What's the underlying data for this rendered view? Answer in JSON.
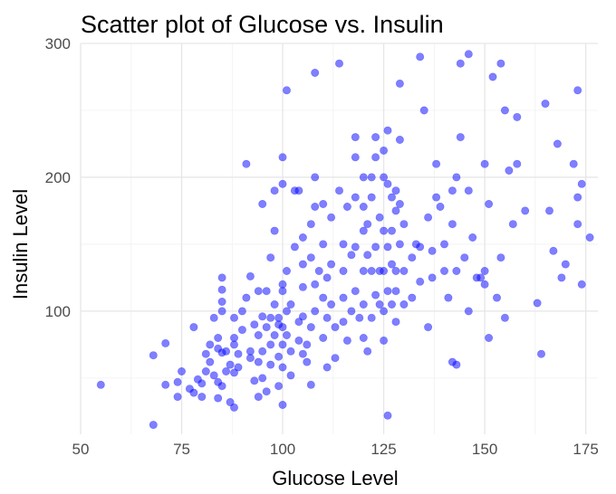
{
  "chart_data": {
    "type": "scatter",
    "title": "Scatter plot of Glucose vs. Insulin",
    "xlabel": "Glucose Level",
    "ylabel": "Insulin Level",
    "xlim": [
      50,
      178
    ],
    "ylim": [
      8,
      300
    ],
    "x_ticks": [
      50,
      75,
      100,
      125,
      150,
      175
    ],
    "y_ticks": [
      100,
      200,
      300
    ],
    "grid": true,
    "point_color": "#0000FF",
    "point_opacity": 0.5,
    "series": [
      {
        "points": [
          [
            55,
            45
          ],
          [
            68,
            15
          ],
          [
            68,
            67
          ],
          [
            71,
            45
          ],
          [
            71,
            76
          ],
          [
            74,
            36
          ],
          [
            74,
            47
          ],
          [
            75,
            55
          ],
          [
            77,
            42
          ],
          [
            78,
            88
          ],
          [
            78,
            39
          ],
          [
            79,
            49
          ],
          [
            80,
            36
          ],
          [
            80,
            46
          ],
          [
            81,
            68
          ],
          [
            81,
            55
          ],
          [
            82,
            75
          ],
          [
            82,
            62
          ],
          [
            83,
            95
          ],
          [
            83,
            52
          ],
          [
            84,
            35
          ],
          [
            84,
            47
          ],
          [
            84,
            72
          ],
          [
            84,
            80
          ],
          [
            85,
            100
          ],
          [
            85,
            107
          ],
          [
            85,
            116
          ],
          [
            85,
            125
          ],
          [
            85,
            69
          ],
          [
            85,
            44
          ],
          [
            86,
            55
          ],
          [
            86,
            70
          ],
          [
            87,
            60
          ],
          [
            87,
            32
          ],
          [
            88,
            75
          ],
          [
            88,
            54
          ],
          [
            88,
            28
          ],
          [
            88,
            80
          ],
          [
            88,
            95
          ],
          [
            89,
            58
          ],
          [
            89,
            68
          ],
          [
            90,
            100
          ],
          [
            90,
            86
          ],
          [
            91,
            210
          ],
          [
            91,
            110
          ],
          [
            92,
            70
          ],
          [
            92,
            65
          ],
          [
            92,
            126
          ],
          [
            93,
            90
          ],
          [
            93,
            48
          ],
          [
            94,
            82
          ],
          [
            94,
            62
          ],
          [
            94,
            36
          ],
          [
            94,
            115
          ],
          [
            95,
            180
          ],
          [
            95,
            96
          ],
          [
            95,
            70
          ],
          [
            95,
            50
          ],
          [
            96,
            115
          ],
          [
            96,
            88
          ],
          [
            96,
            40
          ],
          [
            97,
            140
          ],
          [
            97,
            95
          ],
          [
            97,
            75
          ],
          [
            97,
            60
          ],
          [
            98,
            190
          ],
          [
            98,
            160
          ],
          [
            98,
            105
          ],
          [
            98,
            82
          ],
          [
            99,
            66
          ],
          [
            99,
            90
          ],
          [
            99,
            95
          ],
          [
            99,
            44
          ],
          [
            100,
            215
          ],
          [
            100,
            195
          ],
          [
            100,
            120
          ],
          [
            100,
            115
          ],
          [
            100,
            88
          ],
          [
            100,
            75
          ],
          [
            100,
            58
          ],
          [
            100,
            30
          ],
          [
            101,
            265
          ],
          [
            101,
            130
          ],
          [
            101,
            100
          ],
          [
            101,
            82
          ],
          [
            102,
            70
          ],
          [
            102,
            52
          ],
          [
            102,
            105
          ],
          [
            103,
            190
          ],
          [
            103,
            148
          ],
          [
            104,
            92
          ],
          [
            104,
            78
          ],
          [
            104,
            190
          ],
          [
            105,
            155
          ],
          [
            105,
            135
          ],
          [
            105,
            118
          ],
          [
            105,
            96
          ],
          [
            105,
            68
          ],
          [
            106,
            75
          ],
          [
            106,
            62
          ],
          [
            107,
            165
          ],
          [
            107,
            140
          ],
          [
            107,
            88
          ],
          [
            107,
            45
          ],
          [
            108,
            278
          ],
          [
            108,
            200
          ],
          [
            108,
            178
          ],
          [
            108,
            120
          ],
          [
            108,
            100
          ],
          [
            109,
            130
          ],
          [
            110,
            180
          ],
          [
            110,
            150
          ],
          [
            110,
            110
          ],
          [
            110,
            80
          ],
          [
            111,
            125
          ],
          [
            111,
            95
          ],
          [
            111,
            58
          ],
          [
            112,
            170
          ],
          [
            112,
            135
          ],
          [
            112,
            105
          ],
          [
            113,
            88
          ],
          [
            113,
            65
          ],
          [
            114,
            285
          ],
          [
            114,
            190
          ],
          [
            115,
            150
          ],
          [
            115,
            130
          ],
          [
            115,
            110
          ],
          [
            115,
            92
          ],
          [
            116,
            178
          ],
          [
            116,
            78
          ],
          [
            117,
            142
          ],
          [
            117,
            100
          ],
          [
            118,
            230
          ],
          [
            118,
            215
          ],
          [
            118,
            185
          ],
          [
            118,
            148
          ],
          [
            118,
            115
          ],
          [
            119,
            95
          ],
          [
            120,
            200
          ],
          [
            120,
            178
          ],
          [
            120,
            160
          ],
          [
            120,
            130
          ],
          [
            120,
            105
          ],
          [
            120,
            80
          ],
          [
            121,
            165
          ],
          [
            121,
            142
          ],
          [
            121,
            70
          ],
          [
            122,
            200
          ],
          [
            122,
            185
          ],
          [
            122,
            130
          ],
          [
            122,
            95
          ],
          [
            123,
            230
          ],
          [
            123,
            215
          ],
          [
            123,
            148
          ],
          [
            123,
            112
          ],
          [
            124,
            170
          ],
          [
            124,
            130
          ],
          [
            124,
            105
          ],
          [
            125,
            220
          ],
          [
            125,
            200
          ],
          [
            125,
            160
          ],
          [
            125,
            130
          ],
          [
            125,
            100
          ],
          [
            125,
            78
          ],
          [
            126,
            235
          ],
          [
            126,
            195
          ],
          [
            126,
            148
          ],
          [
            126,
            115
          ],
          [
            126,
            22
          ],
          [
            127,
            185
          ],
          [
            127,
            160
          ],
          [
            127,
            135
          ],
          [
            127,
            105
          ],
          [
            128,
            190
          ],
          [
            128,
            175
          ],
          [
            128,
            130
          ],
          [
            128,
            115
          ],
          [
            128,
            92
          ],
          [
            129,
            270
          ],
          [
            129,
            228
          ],
          [
            129,
            180
          ],
          [
            129,
            150
          ],
          [
            130,
            165
          ],
          [
            130,
            130
          ],
          [
            130,
            105
          ],
          [
            132,
            140
          ],
          [
            132,
            110
          ],
          [
            133,
            150
          ],
          [
            134,
            148
          ],
          [
            134,
            122
          ],
          [
            134,
            290
          ],
          [
            135,
            250
          ],
          [
            136,
            170
          ],
          [
            136,
            88
          ],
          [
            137,
            145
          ],
          [
            137,
            125
          ],
          [
            138,
            185
          ],
          [
            138,
            210
          ],
          [
            139,
            178
          ],
          [
            140,
            150
          ],
          [
            140,
            130
          ],
          [
            141,
            110
          ],
          [
            142,
            190
          ],
          [
            142,
            165
          ],
          [
            142,
            62
          ],
          [
            143,
            200
          ],
          [
            143,
            60
          ],
          [
            143,
            130
          ],
          [
            144,
            230
          ],
          [
            144,
            285
          ],
          [
            145,
            140
          ],
          [
            146,
            190
          ],
          [
            146,
            100
          ],
          [
            146,
            292
          ],
          [
            147,
            155
          ],
          [
            148,
            125
          ],
          [
            149,
            125
          ],
          [
            150,
            130
          ],
          [
            150,
            210
          ],
          [
            150,
            120
          ],
          [
            151,
            80
          ],
          [
            151,
            180
          ],
          [
            152,
            275
          ],
          [
            153,
            110
          ],
          [
            154,
            285
          ],
          [
            154,
            140
          ],
          [
            155,
            95
          ],
          [
            155,
            250
          ],
          [
            156,
            205
          ],
          [
            157,
            165
          ],
          [
            158,
            245
          ],
          [
            158,
            210
          ],
          [
            160,
            175
          ],
          [
            163,
            106
          ],
          [
            164,
            68
          ],
          [
            165,
            255
          ],
          [
            166,
            175
          ],
          [
            167,
            145
          ],
          [
            168,
            225
          ],
          [
            169,
            125
          ],
          [
            170,
            135
          ],
          [
            172,
            210
          ],
          [
            173,
            265
          ],
          [
            173,
            185
          ],
          [
            173,
            165
          ],
          [
            174,
            195
          ],
          [
            174,
            120
          ],
          [
            176,
            155
          ]
        ]
      }
    ]
  }
}
